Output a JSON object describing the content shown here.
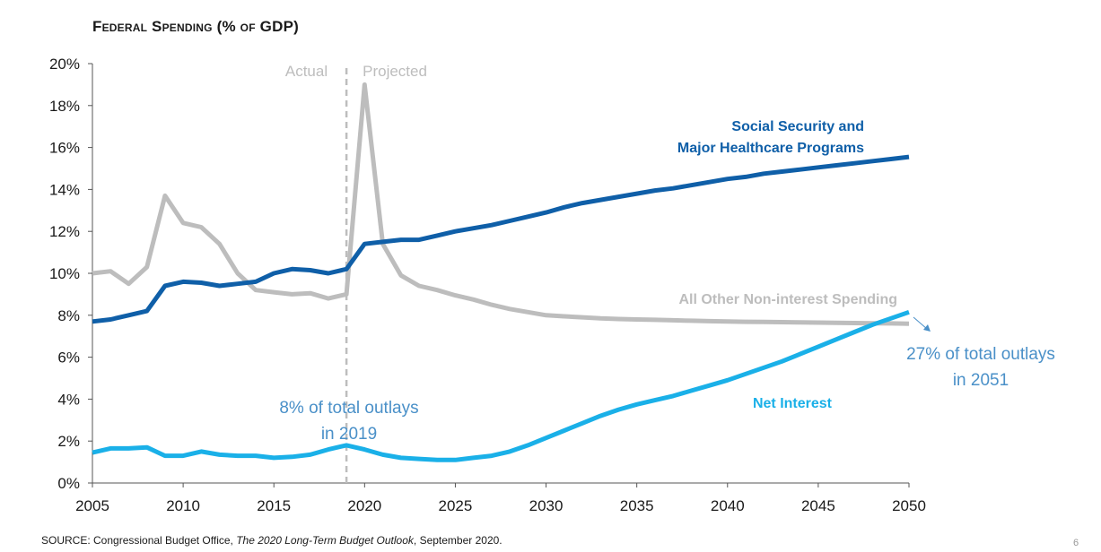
{
  "chart_data": {
    "type": "line",
    "title": "Federal Spending (% of GDP)",
    "xlabel": "",
    "ylabel": "",
    "xlim": [
      2005,
      2050
    ],
    "ylim": [
      0,
      20
    ],
    "x_ticks": [
      "2005",
      "2010",
      "2015",
      "2020",
      "2025",
      "2030",
      "2035",
      "2040",
      "2045",
      "2050"
    ],
    "y_ticks": [
      "0%",
      "2%",
      "4%",
      "6%",
      "8%",
      "10%",
      "12%",
      "14%",
      "16%",
      "18%",
      "20%"
    ],
    "grid": false,
    "divider_year": 2019,
    "phase_labels": {
      "actual": "Actual",
      "projected": "Projected"
    },
    "series": [
      {
        "name": "Social Security and Major Healthcare Programs",
        "label_lines": [
          "Social Security and",
          "Major Healthcare Programs"
        ],
        "color": "#0f5fa8",
        "x": [
          2005,
          2006,
          2007,
          2008,
          2009,
          2010,
          2011,
          2012,
          2013,
          2014,
          2015,
          2016,
          2017,
          2018,
          2019,
          2020,
          2021,
          2022,
          2023,
          2024,
          2025,
          2026,
          2027,
          2028,
          2029,
          2030,
          2031,
          2032,
          2033,
          2034,
          2035,
          2036,
          2037,
          2038,
          2039,
          2040,
          2041,
          2042,
          2043,
          2044,
          2045,
          2046,
          2047,
          2048,
          2049,
          2050
        ],
        "y": [
          7.7,
          7.8,
          8.0,
          8.2,
          9.4,
          9.6,
          9.55,
          9.4,
          9.5,
          9.6,
          10.0,
          10.2,
          10.15,
          10.0,
          10.2,
          11.4,
          11.5,
          11.6,
          11.6,
          11.8,
          12.0,
          12.15,
          12.3,
          12.5,
          12.7,
          12.9,
          13.15,
          13.35,
          13.5,
          13.65,
          13.8,
          13.95,
          14.05,
          14.2,
          14.35,
          14.5,
          14.6,
          14.75,
          14.85,
          14.95,
          15.05,
          15.15,
          15.25,
          15.35,
          15.45,
          15.55
        ]
      },
      {
        "name": "All Other Non-interest Spending",
        "label_lines": [
          "All Other Non-interest Spending"
        ],
        "color": "#bdbdbd",
        "x": [
          2005,
          2006,
          2007,
          2008,
          2009,
          2010,
          2011,
          2012,
          2013,
          2014,
          2015,
          2016,
          2017,
          2018,
          2019,
          2020,
          2021,
          2022,
          2023,
          2024,
          2025,
          2026,
          2027,
          2028,
          2029,
          2030,
          2031,
          2032,
          2033,
          2034,
          2035,
          2036,
          2037,
          2038,
          2039,
          2040,
          2041,
          2042,
          2043,
          2044,
          2045,
          2046,
          2047,
          2048,
          2049,
          2050
        ],
        "y": [
          10.0,
          10.1,
          9.5,
          10.3,
          13.7,
          12.4,
          12.2,
          11.4,
          10.0,
          9.2,
          9.1,
          9.0,
          9.05,
          8.8,
          9.0,
          19.0,
          11.4,
          9.9,
          9.4,
          9.2,
          8.95,
          8.75,
          8.5,
          8.3,
          8.15,
          8.0,
          7.95,
          7.9,
          7.85,
          7.82,
          7.8,
          7.78,
          7.76,
          7.74,
          7.72,
          7.7,
          7.69,
          7.68,
          7.67,
          7.66,
          7.65,
          7.64,
          7.63,
          7.62,
          7.61,
          7.6
        ]
      },
      {
        "name": "Net Interest",
        "label_lines": [
          "Net Interest"
        ],
        "color": "#1ab0e8",
        "x": [
          2005,
          2006,
          2007,
          2008,
          2009,
          2010,
          2011,
          2012,
          2013,
          2014,
          2015,
          2016,
          2017,
          2018,
          2019,
          2020,
          2021,
          2022,
          2023,
          2024,
          2025,
          2026,
          2027,
          2028,
          2029,
          2030,
          2031,
          2032,
          2033,
          2034,
          2035,
          2036,
          2037,
          2038,
          2039,
          2040,
          2041,
          2042,
          2043,
          2044,
          2045,
          2046,
          2047,
          2048,
          2049,
          2050
        ],
        "y": [
          1.45,
          1.65,
          1.65,
          1.7,
          1.3,
          1.3,
          1.5,
          1.35,
          1.3,
          1.3,
          1.2,
          1.25,
          1.35,
          1.6,
          1.8,
          1.6,
          1.35,
          1.2,
          1.15,
          1.1,
          1.1,
          1.2,
          1.3,
          1.5,
          1.8,
          2.15,
          2.5,
          2.85,
          3.2,
          3.5,
          3.75,
          3.95,
          4.15,
          4.4,
          4.65,
          4.9,
          5.2,
          5.5,
          5.8,
          6.15,
          6.5,
          6.85,
          7.2,
          7.55,
          7.85,
          8.15
        ]
      }
    ],
    "annotations": [
      {
        "lines": [
          "8% of total outlays",
          "in 2019"
        ],
        "color": "#4a90c8"
      },
      {
        "lines": [
          "27% of total outlays",
          "in 2051"
        ],
        "color": "#4a90c8"
      }
    ]
  },
  "source": {
    "prefix": "SOURCE: Congressional Budget Office, ",
    "title": "The 2020 Long-Term Budget Outlook",
    "suffix": ", September 2020."
  },
  "page_number": "6"
}
